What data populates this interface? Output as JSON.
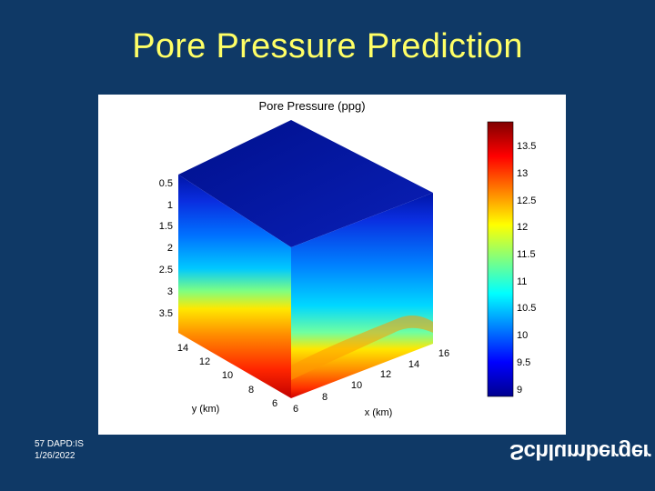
{
  "slide": {
    "title": "Pore Pressure Prediction"
  },
  "figure": {
    "title": "Pore Pressure (ppg)",
    "depth_ticks": [
      "0.5",
      "1",
      "1.5",
      "2",
      "2.5",
      "3",
      "3.5"
    ],
    "y_axis": {
      "label": "y (km)",
      "ticks": [
        "14",
        "12",
        "10",
        "8",
        "6"
      ]
    },
    "x_axis": {
      "label": "x (km)",
      "ticks": [
        "6",
        "8",
        "10",
        "12",
        "14",
        "16"
      ]
    },
    "colorbar": {
      "ticks": [
        "13.5",
        "13",
        "12.5",
        "12",
        "11.5",
        "11",
        "10.5",
        "10",
        "9.5",
        "9"
      ]
    }
  },
  "footer": {
    "line1": "57   DAPD:IS",
    "line2": "1/26/2022"
  },
  "logo": {
    "text": "Schlumberger"
  },
  "colors": {
    "background": "#0f3966",
    "title": "#ffff66"
  }
}
